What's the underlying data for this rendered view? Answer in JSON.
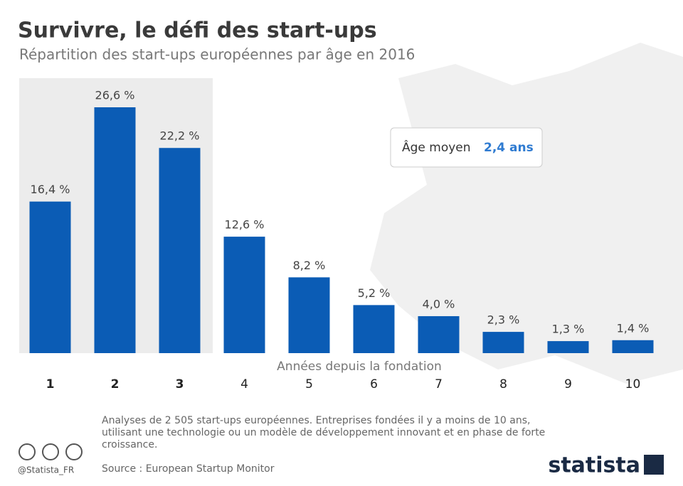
{
  "chart_data": {
    "type": "bar",
    "title": "Survivre, le défi des start-ups",
    "subtitle": "Répartition des start-ups européennes par âge en 2016",
    "x_label": "Années depuis la fondation",
    "categories": [
      "1",
      "2",
      "3",
      "4",
      "5",
      "6",
      "7",
      "8",
      "9",
      "10"
    ],
    "values": [
      16.4,
      26.6,
      22.2,
      12.6,
      8.2,
      5.2,
      4.0,
      2.3,
      1.3,
      1.4
    ],
    "value_labels": [
      "16,4 %",
      "26,6 %",
      "22,2 %",
      "12,6 %",
      "8,2 %",
      "5,2 %",
      "4,0 %",
      "2,3 %",
      "1,3 %",
      "1,4 %"
    ],
    "color": "#0b5cb5",
    "highlight": [
      0,
      1,
      2
    ],
    "annotation": {
      "label": "Âge moyen",
      "value": "2,4 ans"
    },
    "note": "Analyses de 2 505 start-ups européennes. Entreprises fondées il y a moins de 10 ans, utilisant une technologie ou un modèle de développement innovant et en phase de forte croissance.",
    "source": "Source : European Startup Monitor",
    "handle": "@Statista_FR",
    "brand": "statista"
  }
}
